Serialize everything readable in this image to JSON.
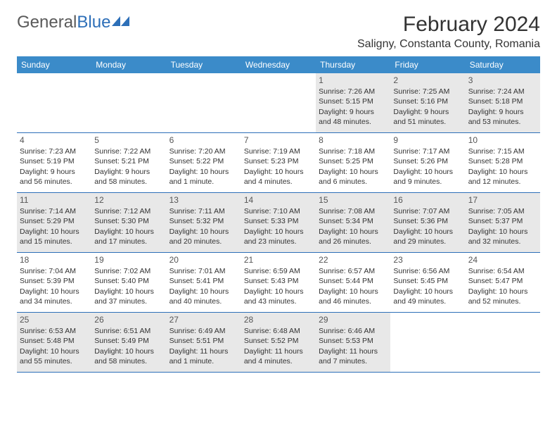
{
  "logo": {
    "text_gray": "General",
    "text_blue": "Blue"
  },
  "title": "February 2024",
  "location": "Saligny, Constanta County, Romania",
  "colors": {
    "header_bg": "#3b8bc9",
    "header_text": "#ffffff",
    "border": "#2d6fb8",
    "shaded_bg": "#e8e8e8",
    "body_text": "#333333",
    "logo_gray": "#5a5a5a",
    "logo_blue": "#2d6fb8"
  },
  "weekdays": [
    "Sunday",
    "Monday",
    "Tuesday",
    "Wednesday",
    "Thursday",
    "Friday",
    "Saturday"
  ],
  "weeks": [
    [
      {
        "day": "",
        "sunrise": "",
        "sunset": "",
        "daylight1": "",
        "daylight2": ""
      },
      {
        "day": "",
        "sunrise": "",
        "sunset": "",
        "daylight1": "",
        "daylight2": ""
      },
      {
        "day": "",
        "sunrise": "",
        "sunset": "",
        "daylight1": "",
        "daylight2": ""
      },
      {
        "day": "",
        "sunrise": "",
        "sunset": "",
        "daylight1": "",
        "daylight2": ""
      },
      {
        "day": "1",
        "sunrise": "Sunrise: 7:26 AM",
        "sunset": "Sunset: 5:15 PM",
        "daylight1": "Daylight: 9 hours",
        "daylight2": "and 48 minutes."
      },
      {
        "day": "2",
        "sunrise": "Sunrise: 7:25 AM",
        "sunset": "Sunset: 5:16 PM",
        "daylight1": "Daylight: 9 hours",
        "daylight2": "and 51 minutes."
      },
      {
        "day": "3",
        "sunrise": "Sunrise: 7:24 AM",
        "sunset": "Sunset: 5:18 PM",
        "daylight1": "Daylight: 9 hours",
        "daylight2": "and 53 minutes."
      }
    ],
    [
      {
        "day": "4",
        "sunrise": "Sunrise: 7:23 AM",
        "sunset": "Sunset: 5:19 PM",
        "daylight1": "Daylight: 9 hours",
        "daylight2": "and 56 minutes."
      },
      {
        "day": "5",
        "sunrise": "Sunrise: 7:22 AM",
        "sunset": "Sunset: 5:21 PM",
        "daylight1": "Daylight: 9 hours",
        "daylight2": "and 58 minutes."
      },
      {
        "day": "6",
        "sunrise": "Sunrise: 7:20 AM",
        "sunset": "Sunset: 5:22 PM",
        "daylight1": "Daylight: 10 hours",
        "daylight2": "and 1 minute."
      },
      {
        "day": "7",
        "sunrise": "Sunrise: 7:19 AM",
        "sunset": "Sunset: 5:23 PM",
        "daylight1": "Daylight: 10 hours",
        "daylight2": "and 4 minutes."
      },
      {
        "day": "8",
        "sunrise": "Sunrise: 7:18 AM",
        "sunset": "Sunset: 5:25 PM",
        "daylight1": "Daylight: 10 hours",
        "daylight2": "and 6 minutes."
      },
      {
        "day": "9",
        "sunrise": "Sunrise: 7:17 AM",
        "sunset": "Sunset: 5:26 PM",
        "daylight1": "Daylight: 10 hours",
        "daylight2": "and 9 minutes."
      },
      {
        "day": "10",
        "sunrise": "Sunrise: 7:15 AM",
        "sunset": "Sunset: 5:28 PM",
        "daylight1": "Daylight: 10 hours",
        "daylight2": "and 12 minutes."
      }
    ],
    [
      {
        "day": "11",
        "sunrise": "Sunrise: 7:14 AM",
        "sunset": "Sunset: 5:29 PM",
        "daylight1": "Daylight: 10 hours",
        "daylight2": "and 15 minutes."
      },
      {
        "day": "12",
        "sunrise": "Sunrise: 7:12 AM",
        "sunset": "Sunset: 5:30 PM",
        "daylight1": "Daylight: 10 hours",
        "daylight2": "and 17 minutes."
      },
      {
        "day": "13",
        "sunrise": "Sunrise: 7:11 AM",
        "sunset": "Sunset: 5:32 PM",
        "daylight1": "Daylight: 10 hours",
        "daylight2": "and 20 minutes."
      },
      {
        "day": "14",
        "sunrise": "Sunrise: 7:10 AM",
        "sunset": "Sunset: 5:33 PM",
        "daylight1": "Daylight: 10 hours",
        "daylight2": "and 23 minutes."
      },
      {
        "day": "15",
        "sunrise": "Sunrise: 7:08 AM",
        "sunset": "Sunset: 5:34 PM",
        "daylight1": "Daylight: 10 hours",
        "daylight2": "and 26 minutes."
      },
      {
        "day": "16",
        "sunrise": "Sunrise: 7:07 AM",
        "sunset": "Sunset: 5:36 PM",
        "daylight1": "Daylight: 10 hours",
        "daylight2": "and 29 minutes."
      },
      {
        "day": "17",
        "sunrise": "Sunrise: 7:05 AM",
        "sunset": "Sunset: 5:37 PM",
        "daylight1": "Daylight: 10 hours",
        "daylight2": "and 32 minutes."
      }
    ],
    [
      {
        "day": "18",
        "sunrise": "Sunrise: 7:04 AM",
        "sunset": "Sunset: 5:39 PM",
        "daylight1": "Daylight: 10 hours",
        "daylight2": "and 34 minutes."
      },
      {
        "day": "19",
        "sunrise": "Sunrise: 7:02 AM",
        "sunset": "Sunset: 5:40 PM",
        "daylight1": "Daylight: 10 hours",
        "daylight2": "and 37 minutes."
      },
      {
        "day": "20",
        "sunrise": "Sunrise: 7:01 AM",
        "sunset": "Sunset: 5:41 PM",
        "daylight1": "Daylight: 10 hours",
        "daylight2": "and 40 minutes."
      },
      {
        "day": "21",
        "sunrise": "Sunrise: 6:59 AM",
        "sunset": "Sunset: 5:43 PM",
        "daylight1": "Daylight: 10 hours",
        "daylight2": "and 43 minutes."
      },
      {
        "day": "22",
        "sunrise": "Sunrise: 6:57 AM",
        "sunset": "Sunset: 5:44 PM",
        "daylight1": "Daylight: 10 hours",
        "daylight2": "and 46 minutes."
      },
      {
        "day": "23",
        "sunrise": "Sunrise: 6:56 AM",
        "sunset": "Sunset: 5:45 PM",
        "daylight1": "Daylight: 10 hours",
        "daylight2": "and 49 minutes."
      },
      {
        "day": "24",
        "sunrise": "Sunrise: 6:54 AM",
        "sunset": "Sunset: 5:47 PM",
        "daylight1": "Daylight: 10 hours",
        "daylight2": "and 52 minutes."
      }
    ],
    [
      {
        "day": "25",
        "sunrise": "Sunrise: 6:53 AM",
        "sunset": "Sunset: 5:48 PM",
        "daylight1": "Daylight: 10 hours",
        "daylight2": "and 55 minutes."
      },
      {
        "day": "26",
        "sunrise": "Sunrise: 6:51 AM",
        "sunset": "Sunset: 5:49 PM",
        "daylight1": "Daylight: 10 hours",
        "daylight2": "and 58 minutes."
      },
      {
        "day": "27",
        "sunrise": "Sunrise: 6:49 AM",
        "sunset": "Sunset: 5:51 PM",
        "daylight1": "Daylight: 11 hours",
        "daylight2": "and 1 minute."
      },
      {
        "day": "28",
        "sunrise": "Sunrise: 6:48 AM",
        "sunset": "Sunset: 5:52 PM",
        "daylight1": "Daylight: 11 hours",
        "daylight2": "and 4 minutes."
      },
      {
        "day": "29",
        "sunrise": "Sunrise: 6:46 AM",
        "sunset": "Sunset: 5:53 PM",
        "daylight1": "Daylight: 11 hours",
        "daylight2": "and 7 minutes."
      },
      {
        "day": "",
        "sunrise": "",
        "sunset": "",
        "daylight1": "",
        "daylight2": ""
      },
      {
        "day": "",
        "sunrise": "",
        "sunset": "",
        "daylight1": "",
        "daylight2": ""
      }
    ]
  ]
}
